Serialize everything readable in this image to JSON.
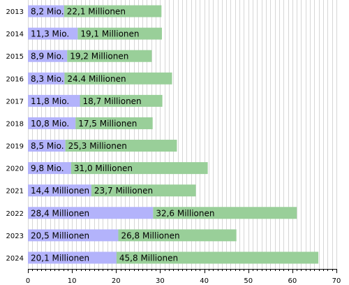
{
  "chart_data": {
    "type": "bar",
    "orientation": "horizontal",
    "stacked": true,
    "title": "",
    "xlabel": "",
    "ylabel": "",
    "xlim": [
      0,
      70
    ],
    "x_ticks": [
      0,
      10,
      20,
      30,
      40,
      50,
      60,
      70
    ],
    "grid": "vertical minor lines",
    "categories": [
      "2013",
      "2014",
      "2015",
      "2016",
      "2017",
      "2018",
      "2019",
      "2020",
      "2021",
      "2022",
      "2023",
      "2024"
    ],
    "series": [
      {
        "color": "#b3b3fb",
        "values": [
          8.2,
          11.3,
          8.9,
          8.3,
          11.8,
          10.8,
          8.5,
          9.8,
          14.4,
          28.4,
          20.5,
          20.1
        ],
        "labels": [
          "8,2 Mio.",
          "11,3 Mio.",
          "8,9 Mio.",
          "8,3 Mio.",
          "11,8 Mio.",
          "10,8 Mio.",
          "8,5 Mio.",
          "9,8 Mio.",
          "14,4 Millionen",
          "28,4 Millionen",
          "20,5 Millionen",
          "20,1 Millionen"
        ]
      },
      {
        "color": "#99cf99",
        "values": [
          22.1,
          19.1,
          19.2,
          24.4,
          18.7,
          17.5,
          25.3,
          31.0,
          23.7,
          32.6,
          26.8,
          45.8
        ],
        "labels": [
          "22,1 Millionen",
          "19,1 Millionen",
          "19,2 Millionen",
          "24.4 Millionen",
          "18,7 Millionen",
          "17,5 Millionen",
          "25,3 Millionen",
          "31,0 Millionen",
          "23,7 Millionen",
          "32,6 Millionen",
          "26,8 Millionen",
          "45,8 Millionen"
        ]
      }
    ]
  }
}
